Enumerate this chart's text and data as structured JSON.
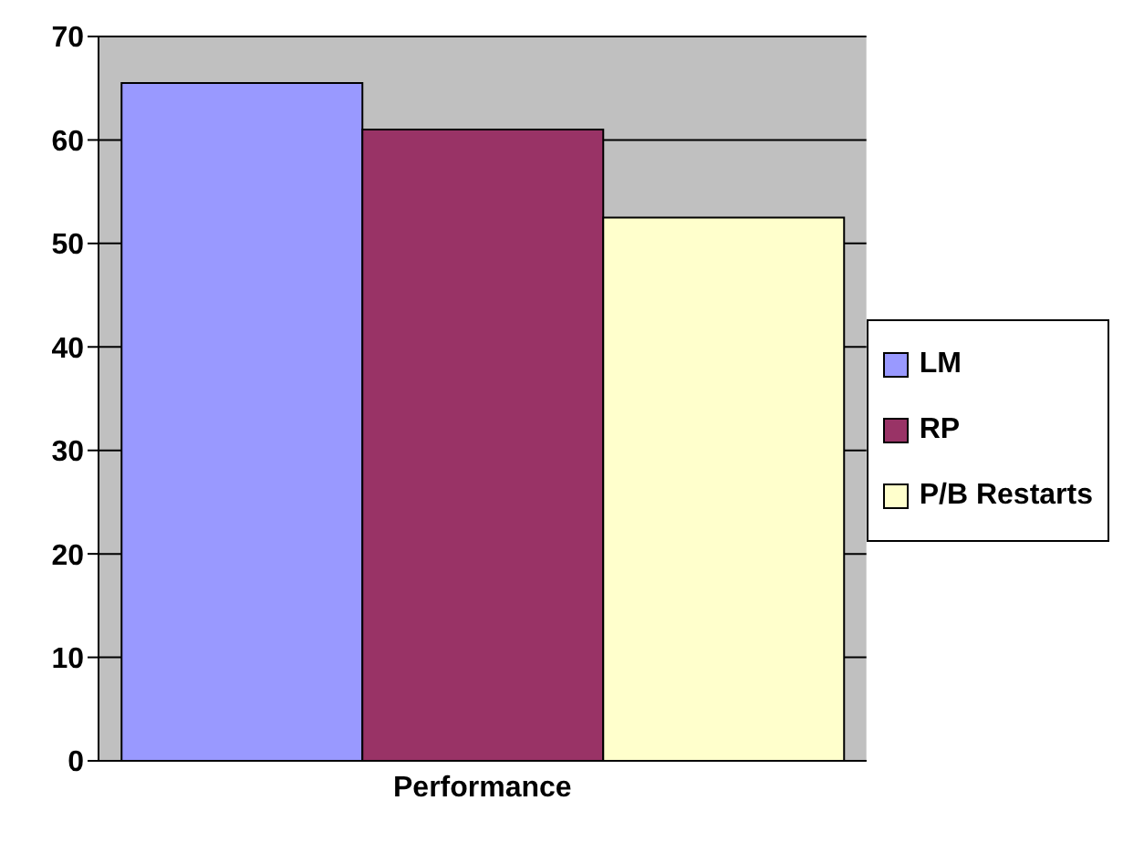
{
  "chart_data": {
    "type": "bar",
    "categories": [
      "Performance"
    ],
    "series": [
      {
        "name": "LM",
        "color": "#9999ff",
        "values": [
          65.5
        ]
      },
      {
        "name": "RP",
        "color": "#993366",
        "values": [
          61
        ]
      },
      {
        "name": "P/B Restarts",
        "color": "#ffffcc",
        "values": [
          52.5
        ]
      }
    ],
    "ylim": [
      0,
      70
    ],
    "yticks": [
      0,
      10,
      20,
      30,
      40,
      50,
      60,
      70
    ],
    "grid": "y",
    "legend": "right"
  }
}
